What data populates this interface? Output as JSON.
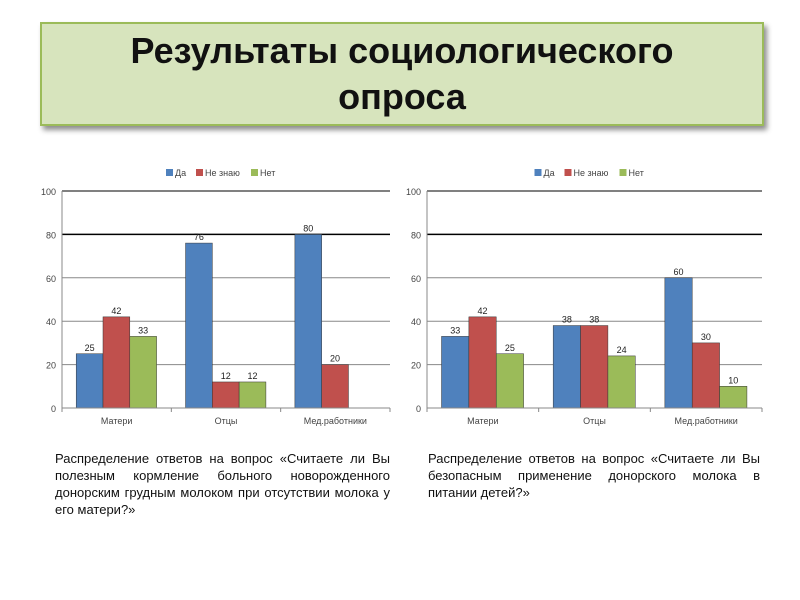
{
  "title": "Результаты социологического опроса",
  "colors": {
    "Да": "#4f81bd",
    "Не знаю": "#c0504d",
    "Нет": "#9bbb59"
  },
  "chart_data": [
    {
      "type": "bar",
      "categories": [
        "Матери",
        "Отцы",
        "Мед.работники"
      ],
      "series": [
        {
          "name": "Да",
          "values": [
            25,
            76,
            80
          ]
        },
        {
          "name": "Не знаю",
          "values": [
            42,
            12,
            20
          ]
        },
        {
          "name": "Нет",
          "values": [
            33,
            12,
            null
          ]
        }
      ],
      "ylim": [
        0,
        100
      ],
      "yticks": [
        0,
        20,
        40,
        60,
        80,
        100
      ],
      "legend": "top",
      "caption": "Распределение ответов на вопрос «Считаете ли Вы полезным кормление больного новорожденного донорским грудным молоком при отсутствии молока у его матери?»"
    },
    {
      "type": "bar",
      "categories": [
        "Матери",
        "Отцы",
        "Мед.работники"
      ],
      "series": [
        {
          "name": "Да",
          "values": [
            33,
            38,
            60
          ]
        },
        {
          "name": "Не знаю",
          "values": [
            42,
            38,
            30
          ]
        },
        {
          "name": "Нет",
          "values": [
            25,
            24,
            10
          ]
        }
      ],
      "ylim": [
        0,
        100
      ],
      "yticks": [
        0,
        20,
        40,
        60,
        80,
        100
      ],
      "legend": "top",
      "caption": "Распределение ответов на вопрос «Считаете ли Вы безопасным применение донорского молока в питании детей?»"
    }
  ]
}
